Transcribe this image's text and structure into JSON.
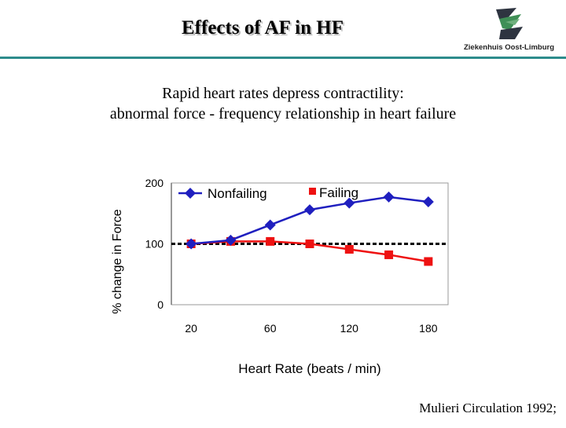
{
  "slide": {
    "title": "Effects of AF in HF",
    "subtitle_line1": "Rapid heart rates depress contractility:",
    "subtitle_line2": "abnormal force - frequency relationship in heart failure",
    "citation": "Mulieri Circulation 1992;",
    "logo_text": "Ziekenhuis Oost-Limburg",
    "colors": {
      "accent_rule": "#2d8c8c",
      "logo_green": "#3f8f56",
      "logo_dark": "#2e3440"
    }
  },
  "chart_data": {
    "type": "line",
    "title": "",
    "xlabel": "Heart Rate (beats / min)",
    "ylabel": "% change in Force",
    "x_ticks": [
      "20",
      "60",
      "120",
      "180"
    ],
    "y_ticks": [
      0,
      100,
      200
    ],
    "ylim": [
      0,
      200
    ],
    "x_positions": [
      1,
      2,
      3,
      4,
      5,
      6,
      7
    ],
    "xlim": [
      0.5,
      7.5
    ],
    "x_tick_positions": [
      1,
      3,
      5,
      7
    ],
    "series": [
      {
        "name": "Nonfailing",
        "color": "#1f1fbf",
        "marker": "diamond",
        "values": [
          100,
          106,
          131,
          156,
          167,
          177,
          169
        ]
      },
      {
        "name": "Failing",
        "color": "#ee1111",
        "marker": "square",
        "values": [
          100,
          104,
          104,
          100,
          91,
          82,
          71
        ]
      }
    ],
    "reference_line": {
      "y": 100,
      "style": "dashed",
      "color": "#000000"
    },
    "legend_placement": "top, inside plot",
    "grid": false
  }
}
